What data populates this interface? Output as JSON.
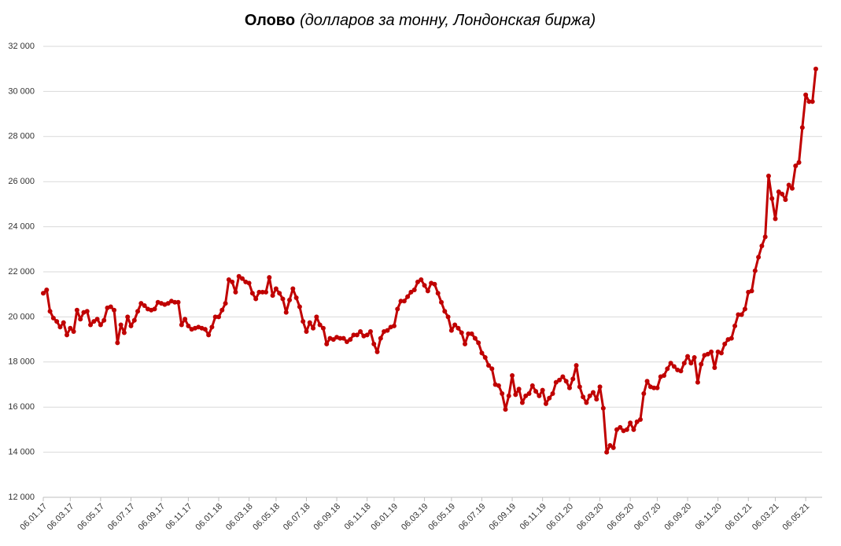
{
  "chart_data": {
    "type": "line",
    "title": "Олово",
    "subtitle": "(долларов за тонну, Лондонская биржа)",
    "color": "#c00000",
    "grid": true,
    "ylim": [
      12000,
      32000
    ],
    "yticks": [
      {
        "value": 12000,
        "label": "12 000"
      },
      {
        "value": 14000,
        "label": "14 000"
      },
      {
        "value": 16000,
        "label": "16 000"
      },
      {
        "value": 18000,
        "label": "18 000"
      },
      {
        "value": 20000,
        "label": "20 000"
      },
      {
        "value": 22000,
        "label": "22 000"
      },
      {
        "value": 24000,
        "label": "24 000"
      },
      {
        "value": 26000,
        "label": "26 000"
      },
      {
        "value": 28000,
        "label": "28 000"
      },
      {
        "value": 30000,
        "label": "30 000"
      },
      {
        "value": 32000,
        "label": "32 000"
      }
    ],
    "categories": [
      "06.01.17",
      null,
      null,
      null,
      null,
      null,
      null,
      null,
      "06.03.17",
      null,
      null,
      null,
      null,
      null,
      null,
      null,
      null,
      "06.05.17",
      null,
      null,
      null,
      null,
      null,
      null,
      null,
      null,
      "06.07.17",
      null,
      null,
      null,
      null,
      null,
      null,
      null,
      null,
      "06.09.17",
      null,
      null,
      null,
      null,
      null,
      null,
      null,
      "06.11.17",
      null,
      null,
      null,
      null,
      null,
      null,
      null,
      null,
      "06.01.18",
      null,
      null,
      null,
      null,
      null,
      null,
      null,
      null,
      "06.03.18",
      null,
      null,
      null,
      null,
      null,
      null,
      null,
      "06.05.18",
      null,
      null,
      null,
      null,
      null,
      null,
      null,
      null,
      "06.07.18",
      null,
      null,
      null,
      null,
      null,
      null,
      null,
      null,
      "06.09.18",
      null,
      null,
      null,
      null,
      null,
      null,
      null,
      null,
      "06.11.18",
      null,
      null,
      null,
      null,
      null,
      null,
      null,
      "06.01.19",
      null,
      null,
      null,
      null,
      null,
      null,
      null,
      null,
      "06.03.19",
      null,
      null,
      null,
      null,
      null,
      null,
      null,
      "06.05.19",
      null,
      null,
      null,
      null,
      null,
      null,
      null,
      null,
      "06.07.19",
      null,
      null,
      null,
      null,
      null,
      null,
      null,
      null,
      "06.09.19",
      null,
      null,
      null,
      null,
      null,
      null,
      null,
      null,
      "06.11.19",
      null,
      null,
      null,
      null,
      null,
      null,
      null,
      "06.01.20",
      null,
      null,
      null,
      null,
      null,
      null,
      null,
      null,
      "06.03.20",
      null,
      null,
      null,
      null,
      null,
      null,
      null,
      null,
      "06.05.20",
      null,
      null,
      null,
      null,
      null,
      null,
      null,
      "06.07.20",
      null,
      null,
      null,
      null,
      null,
      null,
      null,
      null,
      "06.09.20",
      null,
      null,
      null,
      null,
      null,
      null,
      null,
      null,
      "06.11.20",
      null,
      null,
      null,
      null,
      null,
      null,
      null,
      null,
      "06.01.21",
      null,
      null,
      null,
      null,
      null,
      null,
      null,
      "06.03.21",
      null,
      null,
      null,
      null,
      null,
      null,
      null,
      null,
      "06.05.21",
      null,
      null,
      null
    ],
    "values": [
      21050,
      21200,
      20250,
      19950,
      19800,
      19550,
      19750,
      19200,
      19500,
      19350,
      20300,
      19900,
      20200,
      20250,
      19650,
      19800,
      19900,
      19650,
      19850,
      20400,
      20450,
      20300,
      18850,
      19650,
      19300,
      20000,
      19600,
      19850,
      20250,
      20600,
      20500,
      20350,
      20300,
      20350,
      20650,
      20600,
      20550,
      20600,
      20700,
      20650,
      20650,
      19650,
      19900,
      19600,
      19450,
      19500,
      19550,
      19500,
      19450,
      19200,
      19550,
      20000,
      20000,
      20300,
      20600,
      21650,
      21550,
      21100,
      21800,
      21700,
      21550,
      21500,
      21050,
      20800,
      21100,
      21100,
      21100,
      21750,
      20950,
      21250,
      21050,
      20800,
      20200,
      20750,
      21250,
      20850,
      20450,
      19800,
      19350,
      19750,
      19500,
      20000,
      19650,
      19500,
      18800,
      19050,
      19000,
      19100,
      19050,
      19050,
      18900,
      19000,
      19200,
      19200,
      19350,
      19150,
      19200,
      19350,
      18800,
      18450,
      19050,
      19350,
      19400,
      19550,
      19600,
      20350,
      20700,
      20700,
      20900,
      21100,
      21200,
      21550,
      21650,
      21400,
      21150,
      21500,
      21450,
      21050,
      20650,
      20250,
      20000,
      19400,
      19650,
      19500,
      19300,
      18800,
      19250,
      19250,
      19050,
      18850,
      18400,
      18200,
      17850,
      17700,
      17000,
      16950,
      16600,
      15900,
      16500,
      17400,
      16550,
      16800,
      16200,
      16500,
      16600,
      16950,
      16700,
      16500,
      16750,
      16150,
      16400,
      16600,
      17100,
      17200,
      17350,
      17150,
      16850,
      17250,
      17850,
      16900,
      16450,
      16200,
      16500,
      16650,
      16350,
      16900,
      15950,
      14000,
      14300,
      14200,
      15000,
      15100,
      14950,
      15000,
      15300,
      15000,
      15350,
      15450,
      16600,
      17150,
      16900,
      16850,
      16850,
      17350,
      17400,
      17700,
      17950,
      17800,
      17650,
      17600,
      17950,
      18250,
      17950,
      18200,
      17100,
      17900,
      18300,
      18350,
      18450,
      17750,
      18450,
      18400,
      18800,
      19000,
      19050,
      19600,
      20100,
      20100,
      20350,
      21100,
      21150,
      22050,
      22650,
      23150,
      23550,
      26250,
      25250,
      24350,
      25550,
      25450,
      25200,
      25850,
      25700,
      26700,
      26850,
      28400,
      29850,
      29550,
      29550,
      31000
    ]
  }
}
